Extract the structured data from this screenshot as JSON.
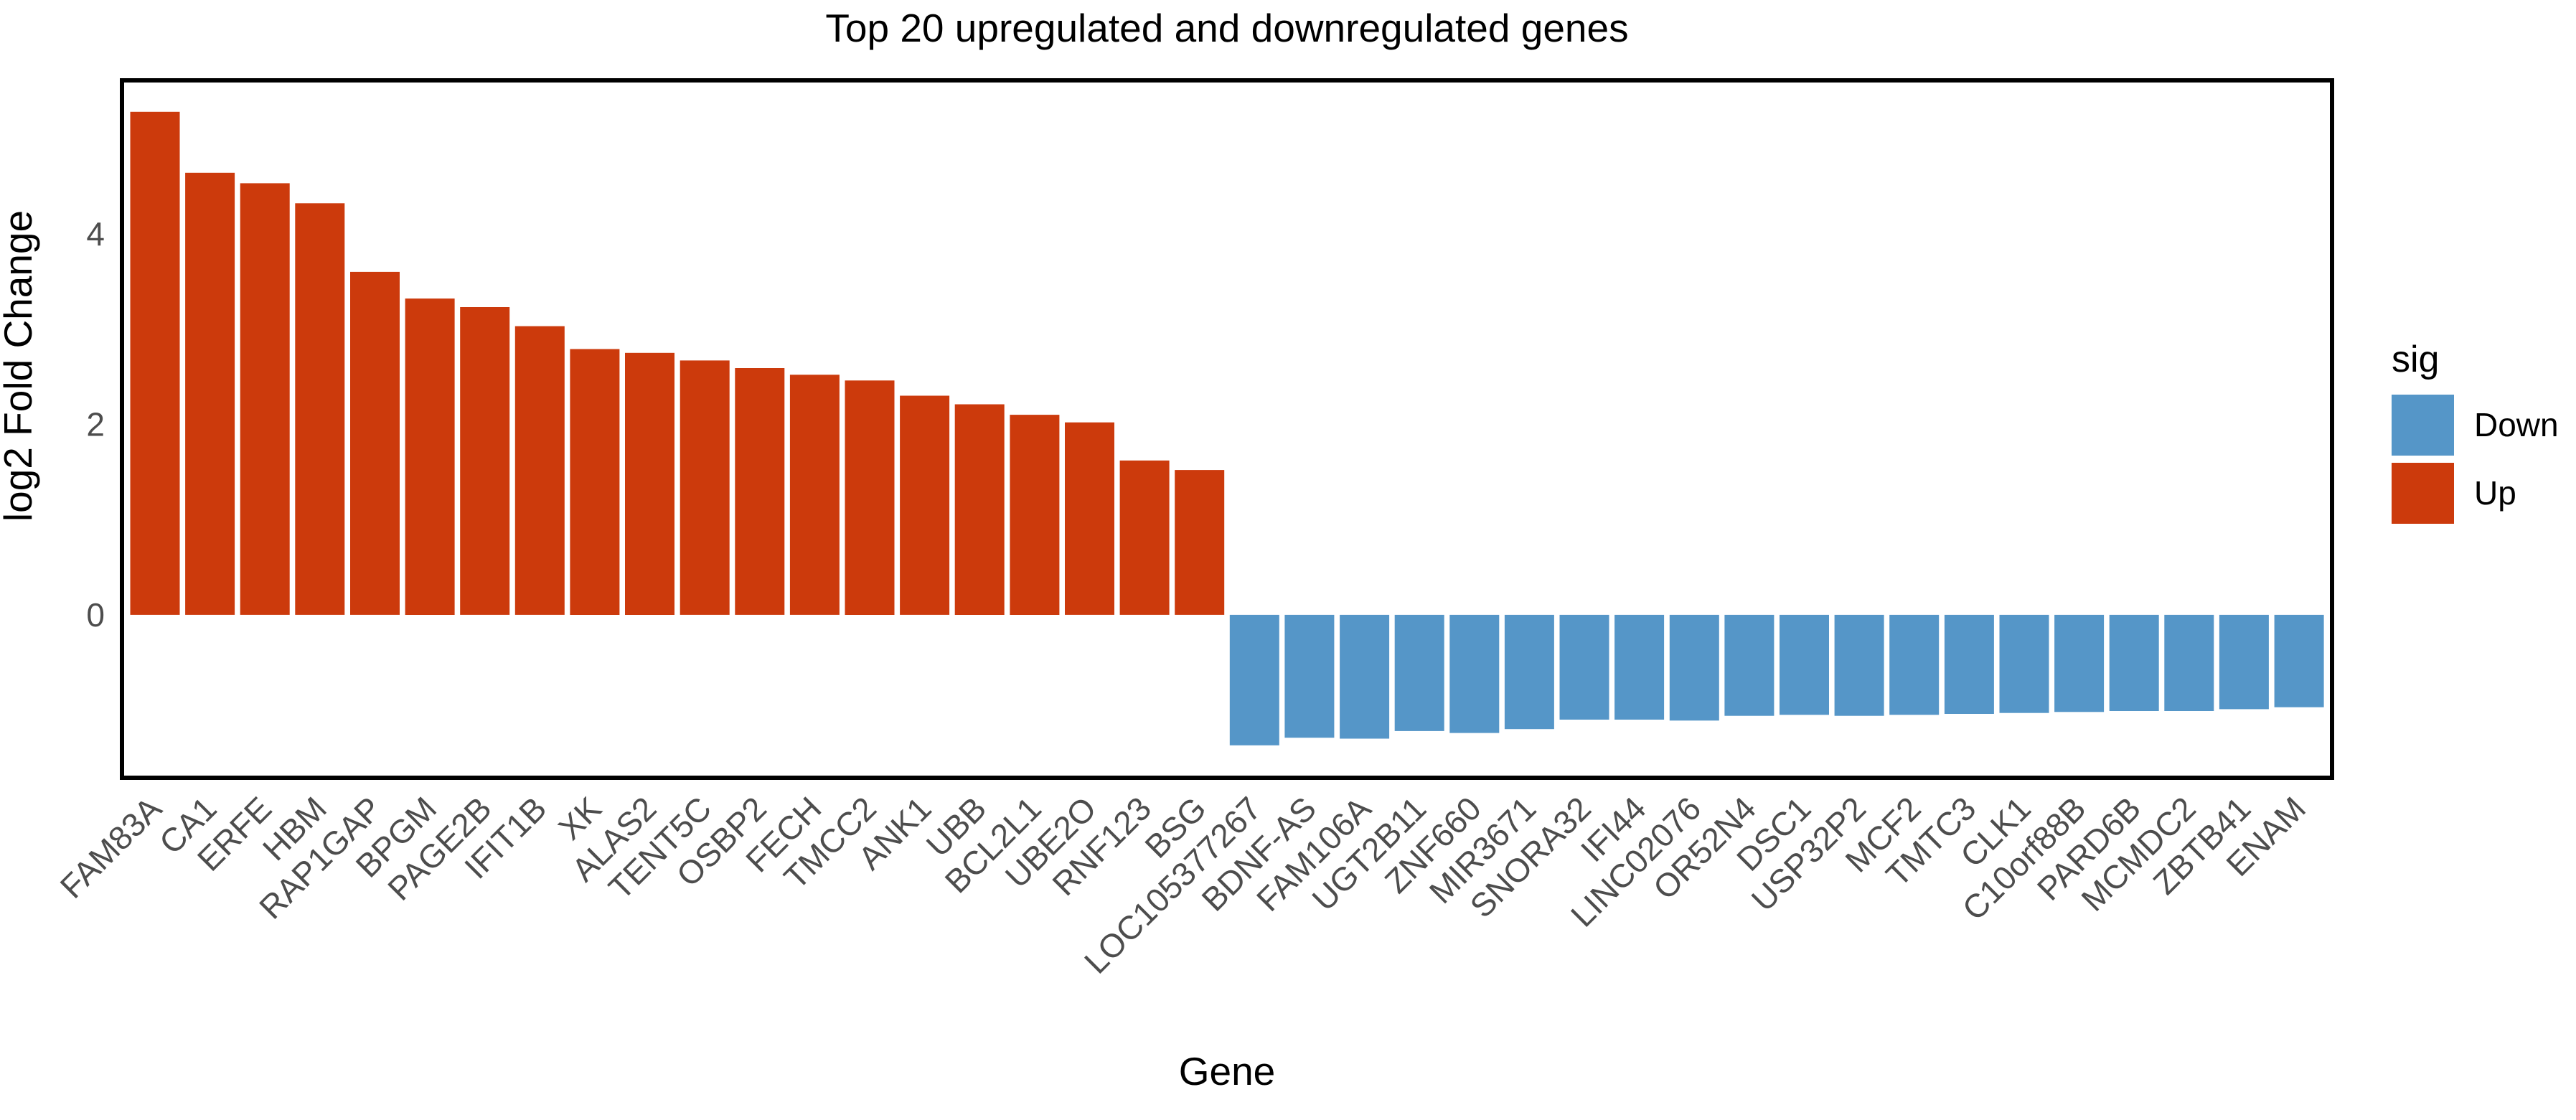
{
  "figure": {
    "title": "Top 20 upregulated and downregulated genes",
    "xlabel": "Gene",
    "ylabel": "log2 Fold Change"
  },
  "chart_data": {
    "type": "bar",
    "title": "Top 20 upregulated and downregulated genes",
    "xlabel": "Gene",
    "ylabel": "log2 Fold Change",
    "categories": [
      "FAM83A",
      "CA1",
      "ERFE",
      "HBM",
      "RAP1GAP",
      "BPGM",
      "PAGE2B",
      "IFIT1B",
      "XK",
      "ALAS2",
      "TENT5C",
      "OSBP2",
      "FECH",
      "TMCC2",
      "ANK1",
      "UBB",
      "BCL2L1",
      "UBE2O",
      "RNF123",
      "BSG",
      "LOC105377267",
      "BDNF-AS",
      "FAM106A",
      "UGT2B11",
      "ZNF660",
      "MIR3671",
      "SNORA32",
      "IFI44",
      "LINC02076",
      "OR52N4",
      "DSC1",
      "USP32P2",
      "MCF2",
      "TMTC3",
      "CLK1",
      "C10orf88B",
      "PARD6B",
      "MCMDC2",
      "ZBTB41",
      "ENAM"
    ],
    "values": [
      5.28,
      4.64,
      4.53,
      4.32,
      3.6,
      3.32,
      3.23,
      3.03,
      2.79,
      2.75,
      2.67,
      2.59,
      2.52,
      2.46,
      2.3,
      2.21,
      2.1,
      2.02,
      1.62,
      1.52,
      -1.37,
      -1.29,
      -1.3,
      -1.22,
      -1.24,
      -1.2,
      -1.1,
      -1.1,
      -1.11,
      -1.06,
      -1.05,
      -1.06,
      -1.05,
      -1.04,
      -1.03,
      -1.02,
      -1.01,
      -1.01,
      -0.99,
      -0.97
    ],
    "groups": [
      "Up",
      "Up",
      "Up",
      "Up",
      "Up",
      "Up",
      "Up",
      "Up",
      "Up",
      "Up",
      "Up",
      "Up",
      "Up",
      "Up",
      "Up",
      "Up",
      "Up",
      "Up",
      "Up",
      "Up",
      "Down",
      "Down",
      "Down",
      "Down",
      "Down",
      "Down",
      "Down",
      "Down",
      "Down",
      "Down",
      "Down",
      "Down",
      "Down",
      "Down",
      "Down",
      "Down",
      "Down",
      "Down",
      "Down",
      "Down"
    ],
    "group_colors": {
      "Up": "#CC3A0C",
      "Down": "#5596C8"
    },
    "yticks": [
      "0",
      "2",
      "4"
    ],
    "ylim": [
      -1.71,
      5.61
    ],
    "grid": false,
    "legend_position": "right",
    "legend_title": "sig",
    "legend_entries": [
      "Down",
      "Up"
    ]
  }
}
